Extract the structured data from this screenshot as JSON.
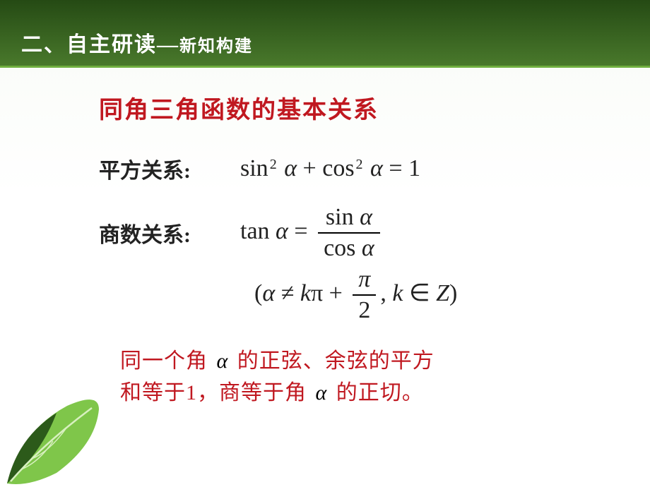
{
  "colors": {
    "header_bg_start": "#254a14",
    "header_bg_end": "#4a7a2c",
    "header_underline": "#6fae3f",
    "header_text": "#ffffff",
    "title_color": "#c01820",
    "body_text": "#222222",
    "footer_color": "#c01820",
    "body_bg_top": "#f8fbf6",
    "body_bg_bottom": "#ffffff",
    "leaf_dark": "#2c5a1a",
    "leaf_light": "#7fc64a",
    "leaf_vein": "#d8f0c0"
  },
  "fonts": {
    "cjk": "SimSun, Microsoft YaHei, serif",
    "math": "Times New Roman, serif",
    "header_main_size": 30,
    "header_sub_size": 24,
    "title_size": 34,
    "label_size": 30,
    "formula_size": 34,
    "footer_size": 30
  },
  "header": {
    "main": "二、自主研读—",
    "sub": "新知构建"
  },
  "title": "同角三角函数的基本关系",
  "relations": {
    "square": {
      "label": "平方关系:",
      "formula_html": "sin<sup>2</sup> <i>α</i> + cos<sup>2</sup> <i>α</i> = 1"
    },
    "quotient": {
      "label": "商数关系:",
      "lhs": "tan <i>α</i> =",
      "frac_num": "sin <i>α</i>",
      "frac_den": "cos <i>α</i>"
    },
    "condition": {
      "open": "(<i>α</i> ≠ <i>k</i>π + ",
      "frac_num": "<i>π</i>",
      "frac_den": "2",
      "close": ", <i>k</i> ∈ <i>Z</i>)"
    }
  },
  "footer": {
    "line1_a": "同一个角 ",
    "alpha1": "α",
    "line1_b": " 的正弦、余弦的平方",
    "line2_a": "和等于1，商等于角 ",
    "alpha2": "α",
    "line2_b": " 的正切。"
  }
}
